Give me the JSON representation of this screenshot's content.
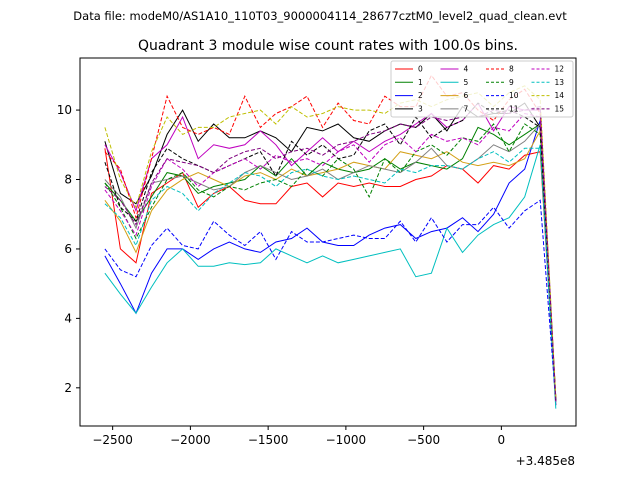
{
  "figure": {
    "suptitle": "Data file: modeM0/AS1A10_110T03_9000004114_28677cztM0_level2_quad_clean.evt",
    "title": "Quadrant 3 module wise count rates with 100.0s bins.",
    "offset_label": "+3.485e8"
  },
  "chart_data": {
    "type": "line",
    "title": "Quadrant 3 module wise count rates with 100.0s bins.",
    "xlabel": "",
    "ylabel": "",
    "x_offset": 348500000,
    "xlim": [
      -2710,
      480
    ],
    "ylim": [
      0.9,
      11.5
    ],
    "xticks": [
      -2500,
      -2000,
      -1500,
      -1000,
      -500,
      0
    ],
    "xtick_labels": [
      "−2500",
      "−2000",
      "−1500",
      "−1000",
      "−500",
      "0"
    ],
    "yticks": [
      2,
      4,
      6,
      8,
      10
    ],
    "ytick_labels": [
      "2",
      "4",
      "6",
      "8",
      "10"
    ],
    "grid": false,
    "legend_position": "top-right",
    "x": [
      -2550,
      -2450,
      -2350,
      -2250,
      -2150,
      -2050,
      -1950,
      -1850,
      -1750,
      -1650,
      -1550,
      -1450,
      -1350,
      -1250,
      -1150,
      -1050,
      -950,
      -850,
      -750,
      -650,
      -550,
      -450,
      -350,
      -250,
      -150,
      -50,
      50,
      150,
      250,
      350
    ],
    "series": [
      {
        "name": "0",
        "color": "#ff0000",
        "dash": false,
        "values": [
          8.9,
          6.0,
          5.6,
          7.6,
          7.9,
          8.2,
          7.2,
          7.6,
          7.8,
          7.4,
          7.3,
          7.3,
          7.8,
          7.9,
          7.5,
          7.9,
          7.8,
          7.9,
          7.8,
          7.8,
          8.0,
          8.1,
          8.4,
          8.3,
          7.9,
          8.4,
          8.3,
          8.7,
          8.8,
          1.5
        ]
      },
      {
        "name": "1",
        "color": "#008000",
        "dash": false,
        "values": [
          7.9,
          7.4,
          6.8,
          7.5,
          8.2,
          8.1,
          7.6,
          7.8,
          7.9,
          8.0,
          8.4,
          8.1,
          8.6,
          8.1,
          8.5,
          8.3,
          8.2,
          8.3,
          8.6,
          8.3,
          8.5,
          8.4,
          8.3,
          8.6,
          9.5,
          9.3,
          9.0,
          9.3,
          9.6,
          1.6
        ]
      },
      {
        "name": "2",
        "color": "#0000ff",
        "dash": false,
        "values": [
          5.8,
          5.0,
          4.15,
          5.3,
          6.0,
          6.0,
          5.7,
          6.0,
          6.2,
          6.0,
          5.9,
          6.2,
          6.3,
          6.6,
          6.2,
          6.1,
          6.1,
          6.4,
          6.6,
          6.7,
          6.3,
          6.5,
          6.6,
          6.9,
          6.5,
          7.0,
          7.9,
          8.3,
          9.7,
          1.5
        ]
      },
      {
        "name": "3",
        "color": "#000000",
        "dash": false,
        "values": [
          9.1,
          7.6,
          7.3,
          8.1,
          9.3,
          10.0,
          9.1,
          9.6,
          9.2,
          9.2,
          9.4,
          9.2,
          8.8,
          9.5,
          9.4,
          9.6,
          9.2,
          9.1,
          9.4,
          9.6,
          9.5,
          9.9,
          9.4,
          10.1,
          9.8,
          9.9,
          9.9,
          10.2,
          9.5,
          1.7
        ]
      },
      {
        "name": "4",
        "color": "#bf00bf",
        "dash": false,
        "values": [
          9.0,
          8.2,
          7.1,
          8.6,
          9.0,
          9.8,
          8.6,
          9.0,
          8.9,
          9.0,
          9.4,
          9.0,
          8.4,
          8.8,
          9.2,
          8.8,
          9.1,
          8.8,
          9.1,
          9.3,
          9.6,
          9.9,
          9.5,
          9.7,
          10.2,
          9.4,
          10.1,
          10.0,
          10.0,
          1.7
        ]
      },
      {
        "name": "5",
        "color": "#00bfbf",
        "dash": false,
        "values": [
          5.3,
          4.7,
          4.15,
          4.9,
          5.6,
          6.0,
          5.5,
          5.5,
          5.6,
          5.55,
          5.6,
          6.0,
          5.8,
          5.6,
          5.8,
          5.6,
          5.7,
          5.8,
          5.9,
          6.0,
          5.2,
          5.3,
          6.6,
          5.9,
          6.4,
          6.7,
          6.9,
          7.5,
          9.0,
          1.4
        ]
      },
      {
        "name": "6",
        "color": "#d4a017",
        "dash": false,
        "values": [
          7.4,
          6.8,
          5.9,
          7.1,
          7.7,
          8.0,
          8.2,
          8.0,
          7.8,
          8.1,
          8.2,
          8.0,
          8.3,
          8.1,
          8.2,
          8.3,
          8.5,
          8.4,
          8.3,
          8.8,
          8.7,
          8.6,
          8.8,
          8.5,
          8.4,
          8.5,
          8.4,
          8.6,
          9.4,
          1.7
        ]
      },
      {
        "name": "7",
        "color": "#808080",
        "dash": false,
        "values": [
          8.0,
          7.5,
          6.6,
          7.9,
          8.0,
          8.1,
          7.9,
          7.7,
          7.8,
          8.2,
          8.4,
          8.2,
          8.0,
          8.1,
          8.3,
          8.0,
          8.2,
          8.4,
          8.3,
          8.2,
          8.5,
          8.9,
          8.4,
          8.3,
          8.6,
          9.0,
          8.8,
          9.1,
          9.6,
          1.6
        ]
      },
      {
        "name": "8",
        "color": "#ff0000",
        "dash": true,
        "values": [
          8.8,
          8.3,
          6.9,
          8.6,
          10.4,
          9.5,
          9.3,
          9.5,
          9.3,
          10.4,
          9.5,
          9.9,
          10.1,
          10.4,
          9.5,
          10.2,
          9.7,
          9.6,
          10.4,
          10.1,
          10.1,
          11.0,
          10.4,
          10.5,
          10.0,
          9.7,
          10.3,
          10.6,
          9.9,
          1.6
        ]
      },
      {
        "name": "9",
        "color": "#008000",
        "dash": true,
        "values": [
          7.9,
          7.2,
          6.3,
          7.2,
          8.0,
          8.2,
          7.7,
          7.5,
          7.8,
          7.7,
          7.9,
          8.0,
          7.8,
          8.3,
          8.1,
          8.6,
          8.3,
          7.5,
          8.6,
          8.2,
          8.8,
          9.0,
          8.7,
          9.2,
          9.1,
          9.6,
          8.8,
          9.6,
          9.3,
          1.6
        ]
      },
      {
        "name": "10",
        "color": "#0000ff",
        "dash": true,
        "values": [
          6.0,
          5.4,
          5.2,
          6.1,
          6.6,
          6.1,
          6.0,
          6.8,
          6.4,
          6.1,
          6.5,
          5.7,
          6.5,
          6.2,
          6.2,
          6.3,
          6.4,
          6.3,
          6.3,
          6.8,
          6.2,
          6.9,
          6.2,
          6.7,
          6.7,
          7.2,
          6.6,
          7.1,
          7.4,
          1.6
        ]
      },
      {
        "name": "11",
        "color": "#000000",
        "dash": true,
        "values": [
          8.5,
          7.2,
          6.8,
          8.2,
          8.9,
          8.6,
          8.4,
          8.2,
          8.4,
          8.6,
          8.8,
          8.1,
          9.1,
          8.7,
          9.0,
          8.6,
          8.7,
          9.4,
          9.6,
          9.0,
          9.8,
          9.2,
          9.5,
          9.7,
          10.2,
          9.9,
          10.0,
          9.8,
          9.5,
          1.6
        ]
      },
      {
        "name": "12",
        "color": "#bf00bf",
        "dash": true,
        "values": [
          7.7,
          7.1,
          6.4,
          7.8,
          8.6,
          8.3,
          7.8,
          8.2,
          8.4,
          8.6,
          8.3,
          8.7,
          8.5,
          8.6,
          8.4,
          8.8,
          9.0,
          8.5,
          9.0,
          9.2,
          8.8,
          9.3,
          9.1,
          9.2,
          9.0,
          9.5,
          9.4,
          9.9,
          9.8,
          1.6
        ]
      },
      {
        "name": "13",
        "color": "#00bfbf",
        "dash": true,
        "values": [
          7.3,
          6.9,
          6.1,
          7.4,
          7.8,
          7.6,
          7.1,
          7.6,
          7.9,
          8.2,
          8.1,
          7.8,
          8.2,
          8.3,
          8.1,
          8.0,
          8.1,
          8.0,
          7.9,
          8.3,
          8.2,
          8.4,
          8.4,
          8.3,
          8.6,
          8.8,
          8.5,
          8.9,
          8.9,
          1.6
        ]
      },
      {
        "name": "14",
        "color": "#bfbf00",
        "dash": true,
        "values": [
          9.5,
          8.0,
          7.2,
          8.8,
          9.8,
          9.3,
          9.5,
          9.5,
          9.8,
          9.9,
          10.0,
          9.6,
          10.1,
          9.8,
          9.9,
          10.1,
          10.0,
          10.0,
          9.9,
          10.2,
          10.3,
          10.1,
          10.3,
          10.4,
          10.5,
          10.1,
          10.5,
          10.7,
          10.3,
          1.7
        ]
      },
      {
        "name": "15",
        "color": "#7f007f",
        "dash": true,
        "values": [
          7.8,
          7.4,
          6.7,
          7.9,
          8.6,
          8.5,
          8.4,
          8.2,
          8.6,
          8.8,
          8.9,
          8.6,
          8.8,
          8.9,
          8.7,
          9.0,
          9.1,
          9.3,
          9.4,
          9.6,
          9.5,
          9.8,
          9.7,
          9.8,
          9.8,
          10.0,
          9.9,
          10.0,
          10.1,
          1.6
        ]
      }
    ]
  }
}
